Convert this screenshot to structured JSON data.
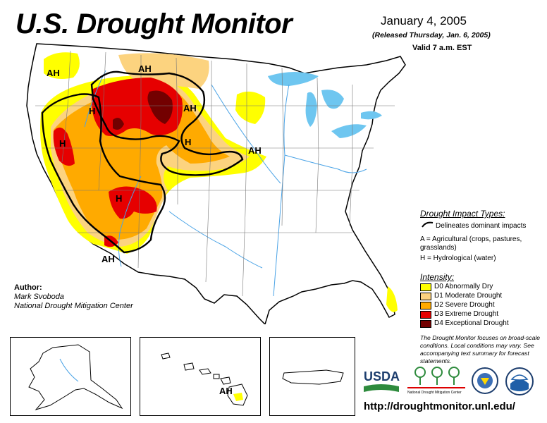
{
  "header": {
    "title": "U.S. Drought Monitor",
    "date": "January 4, 2005",
    "released": "(Released Thursday, Jan. 6, 2005)",
    "valid": "Valid 7 a.m. EST"
  },
  "map_labels": [
    "AH",
    "AH",
    "AH",
    "AH",
    "AH",
    "H",
    "H",
    "H",
    "H",
    "AH"
  ],
  "impact_legend": {
    "heading": "Drought Impact Types:",
    "line_item": "Delineates dominant impacts",
    "a_item": "A = Agricultural (crops, pastures, grasslands)",
    "h_item": "H = Hydrological (water)"
  },
  "intensity_legend": {
    "heading": "Intensity:",
    "items": [
      {
        "label": "D0 Abnormally Dry",
        "color": "#ffff00"
      },
      {
        "label": "D1 Moderate Drought",
        "color": "#fcd37f"
      },
      {
        "label": "D2 Severe Drought",
        "color": "#ffaa00"
      },
      {
        "label": "D3 Extreme Drought",
        "color": "#e60000"
      },
      {
        "label": "D4 Exceptional Drought",
        "color": "#730000"
      }
    ]
  },
  "author": {
    "heading": "Author:",
    "name": "Mark Svoboda",
    "org": "National Drought Mitigation Center"
  },
  "note": "The Drought Monitor focuses on broad-scale conditions. Local conditions may vary. See accompanying text summary for forecast statements.",
  "logos": {
    "usda": "USDA",
    "ndmc": "National Drought Mitigation Center",
    "icons": [
      "usda-logo-icon",
      "ndmc-logo-icon",
      "commerce-seal-icon",
      "noaa-logo-icon"
    ]
  },
  "url": "http://droughtmonitor.unl.edu/",
  "colors": {
    "lakes": "#6ec6f0",
    "rivers": "#4aa3e6",
    "d0": "#ffff00",
    "d1": "#fcd37f",
    "d2": "#ffaa00",
    "d3": "#e60000",
    "d4": "#730000"
  }
}
